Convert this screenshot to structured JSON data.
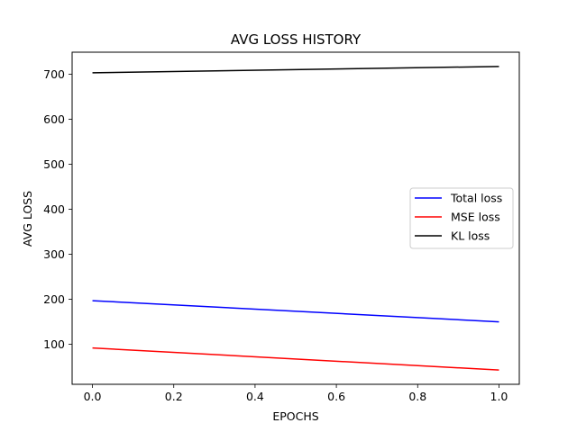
{
  "chart_data": {
    "type": "line",
    "title": "AVG LOSS HISTORY",
    "xlabel": "EPOCHS",
    "ylabel": "AVG LOSS",
    "x": [
      0.0,
      1.0
    ],
    "series": [
      {
        "name": "Total loss",
        "values": [
          197,
          150
        ],
        "color": "#0000ff"
      },
      {
        "name": "MSE loss",
        "values": [
          92,
          43
        ],
        "color": "#ff0000"
      },
      {
        "name": "KL loss",
        "values": [
          703,
          717
        ],
        "color": "#000000"
      }
    ],
    "xlim": [
      -0.05,
      1.05
    ],
    "ylim": [
      11.3,
      748.7
    ],
    "xticks": [
      0.0,
      0.2,
      0.4,
      0.6,
      0.8,
      1.0
    ],
    "xtick_labels": [
      "0.0",
      "0.2",
      "0.4",
      "0.6",
      "0.8",
      "1.0"
    ],
    "yticks": [
      100,
      200,
      300,
      400,
      500,
      600,
      700
    ],
    "ytick_labels": [
      "100",
      "200",
      "300",
      "400",
      "500",
      "600",
      "700"
    ],
    "grid": false,
    "legend_position": "center-right"
  }
}
